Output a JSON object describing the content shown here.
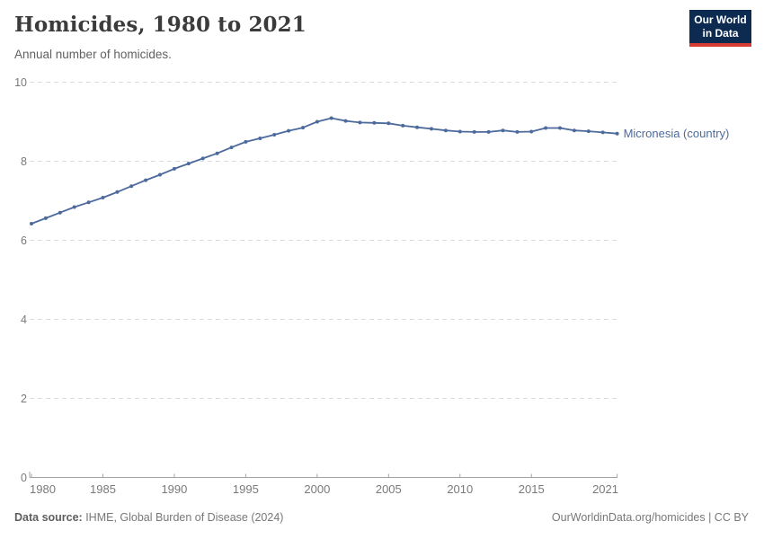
{
  "header": {
    "title": "Homicides, 1980 to 2021",
    "subtitle": "Annual number of homicides.",
    "logo": {
      "line1": "Our World",
      "line2": "in Data",
      "bg_color": "#0d2b51",
      "stripe_color": "#d73c34"
    }
  },
  "chart_data": {
    "type": "line",
    "title": "Homicides, 1980 to 2021",
    "subtitle": "Annual number of homicides.",
    "xlabel": "",
    "ylabel": "",
    "xlim": [
      1980,
      2021
    ],
    "ylim": [
      0,
      10
    ],
    "yticks": [
      0,
      2,
      4,
      6,
      8,
      10
    ],
    "ytick_labels": [
      "0",
      "2",
      "4",
      "6",
      "8",
      "10"
    ],
    "xticks": [
      1980,
      1985,
      1990,
      1995,
      2000,
      2005,
      2010,
      2015,
      2021
    ],
    "xtick_labels": [
      "1980",
      "1985",
      "1990",
      "1995",
      "2000",
      "2005",
      "2010",
      "2015",
      "2021"
    ],
    "grid": "horizontal-dashed",
    "legend_position": "end-of-line-label",
    "colors": {
      "line": "#4c6a9c",
      "grid": "#dcdcdc",
      "axis": "#a3a3a3",
      "tick_label": "#7a7a7a"
    },
    "series": [
      {
        "name": "Micronesia (country)",
        "color": "#4c6a9c",
        "x": [
          1980,
          1981,
          1982,
          1983,
          1984,
          1985,
          1986,
          1987,
          1988,
          1989,
          1990,
          1991,
          1992,
          1993,
          1994,
          1995,
          1996,
          1997,
          1998,
          1999,
          2000,
          2001,
          2002,
          2003,
          2004,
          2005,
          2006,
          2007,
          2008,
          2009,
          2010,
          2011,
          2012,
          2013,
          2014,
          2015,
          2016,
          2017,
          2018,
          2019,
          2020,
          2021
        ],
        "values": [
          6.42,
          6.56,
          6.7,
          6.84,
          6.96,
          7.08,
          7.22,
          7.37,
          7.52,
          7.66,
          7.81,
          7.94,
          8.07,
          8.2,
          8.35,
          8.49,
          8.58,
          8.67,
          8.77,
          8.85,
          9.0,
          9.09,
          9.02,
          8.98,
          8.97,
          8.96,
          8.9,
          8.86,
          8.82,
          8.78,
          8.75,
          8.74,
          8.74,
          8.78,
          8.74,
          8.75,
          8.84,
          8.84,
          8.78,
          8.76,
          8.73,
          8.7
        ]
      }
    ]
  },
  "footer": {
    "source_label": "Data source:",
    "source_text": " IHME, Global Burden of Disease (2024)",
    "right_text": "OurWorldinData.org/homicides | CC BY"
  }
}
